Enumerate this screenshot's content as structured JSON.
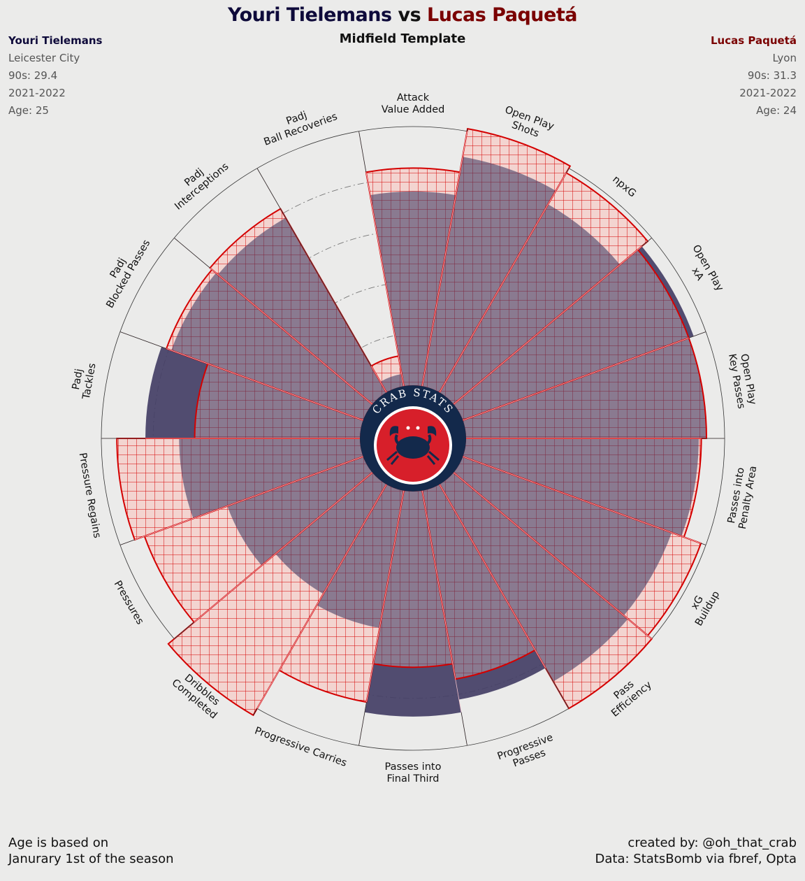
{
  "title": {
    "player1": "Youri Tielemans",
    "vs": "vs",
    "player2": "Lucas Paquetá",
    "subtitle": "Midfield Template"
  },
  "player1_info": {
    "name": "Youri Tielemans",
    "club": "Leicester City",
    "nineties": "90s: 29.4",
    "season": "2021-2022",
    "age": "Age: 25"
  },
  "player2_info": {
    "name": "Lucas Paquetá",
    "club": "Lyon",
    "nineties": "90s: 31.3",
    "season": "2021-2022",
    "age": "Age: 24"
  },
  "logo": {
    "text": "CRAB STATS",
    "icon": "crab-icon"
  },
  "footer": {
    "left_line1": "Age is based on",
    "left_line2": "Janurary 1st of the season",
    "right_line1": "created by: @oh_that_crab",
    "right_line2": "Data: StatsBomb via fbref, Opta"
  },
  "colors": {
    "background": "#ebebea",
    "player1": "#0e0a3a",
    "player1_fill": "#453f66",
    "player2": "#d40000",
    "player2_fill": "#f3d4d0",
    "logo_ring": "#13294b",
    "logo_red": "#d71f2a"
  },
  "chart_data": {
    "type": "radar-bar",
    "scale": "percentile",
    "rlim": [
      0,
      100
    ],
    "gridlines": [
      20,
      40,
      60,
      80
    ],
    "categories": [
      "Attack\nValue Added",
      "Open Play\nShots",
      "npxG",
      "Open Play\nxA",
      "Open Play\nKey Passes",
      "Passes into\nPenalty Area",
      "xG\nBuildup",
      "Pass\nEfficiency",
      "Progressive\nPasses",
      "Passes into\nFinal Third",
      "Progressive Carries",
      "Dribbles\nCompleted",
      "Pressures",
      "Pressure Regains",
      "Padj\nTackles",
      "Padj\nBlocked Passes",
      "Padj\nInterceptions",
      "Padj\nBall Recoveries"
    ],
    "series": [
      {
        "name": "Youri Tielemans",
        "values": [
          75,
          90,
          84,
          95,
          93,
          90,
          86,
          88,
          82,
          87,
          54,
          49,
          56,
          70,
          83,
          79,
          78,
          5
        ]
      },
      {
        "name": "Lucas Paquetá",
        "values": [
          84,
          101,
          98,
          93,
          93,
          91,
          98,
          100,
          74,
          68,
          83,
          103,
          90,
          94,
          64,
          81,
          82,
          12
        ]
      }
    ]
  }
}
